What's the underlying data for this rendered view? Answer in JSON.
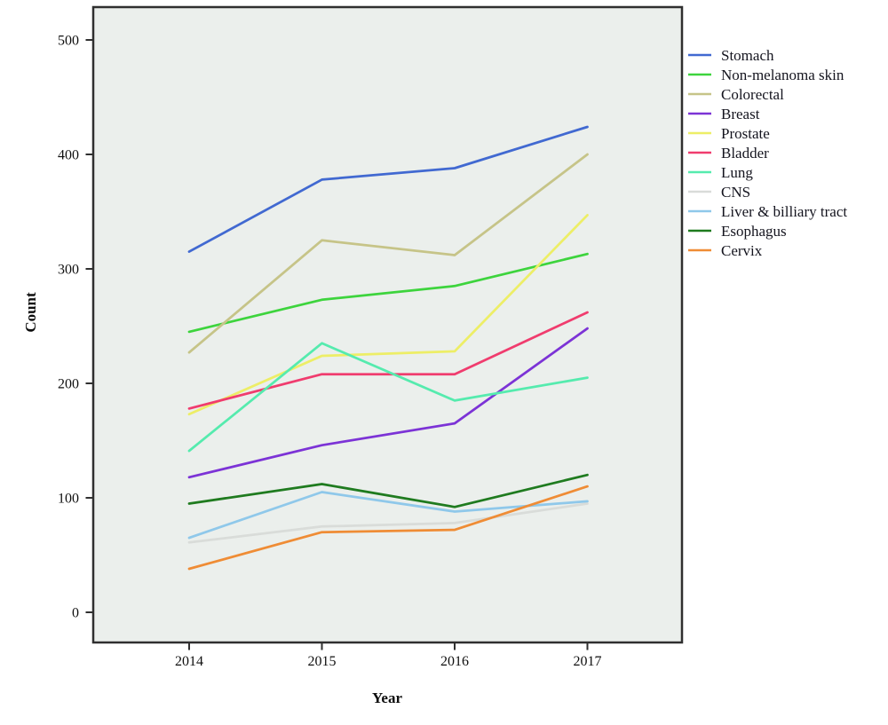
{
  "chart_data": {
    "type": "line",
    "title": "",
    "xlabel": "Year",
    "ylabel": "Count",
    "x": [
      2014,
      2015,
      2016,
      2017
    ],
    "ylim": [
      0,
      500
    ],
    "yticks": [
      0,
      100,
      200,
      300,
      400,
      500
    ],
    "grid": false,
    "legend_position": "right",
    "plot_background": "#EBEFEC",
    "frame_color": "#2f2f2f",
    "text_color": "#0f0f0f",
    "series": [
      {
        "name": "Stomach",
        "color": "#4169D1",
        "values": [
          315,
          378,
          388,
          424
        ]
      },
      {
        "name": "Non-melanoma skin",
        "color": "#3DD43D",
        "values": [
          245,
          273,
          285,
          313
        ]
      },
      {
        "name": "Colorectal",
        "color": "#C6C488",
        "values": [
          227,
          325,
          312,
          400
        ]
      },
      {
        "name": "Breast",
        "color": "#7C33D6",
        "values": [
          118,
          146,
          165,
          248
        ]
      },
      {
        "name": "Prostate",
        "color": "#EDEE66",
        "values": [
          173,
          224,
          228,
          347
        ]
      },
      {
        "name": "Bladder",
        "color": "#F03C6E",
        "values": [
          178,
          208,
          208,
          262
        ]
      },
      {
        "name": "Lung",
        "color": "#55EBAE",
        "values": [
          141,
          235,
          185,
          205
        ]
      },
      {
        "name": "CNS",
        "color": "#D9DCD9",
        "values": [
          61,
          75,
          78,
          95
        ]
      },
      {
        "name": "Liver & billiary tract",
        "color": "#8FC8EA",
        "values": [
          65,
          105,
          88,
          97
        ]
      },
      {
        "name": "Esophagus",
        "color": "#1F7B1F",
        "values": [
          95,
          112,
          92,
          120
        ]
      },
      {
        "name": "Cervix",
        "color": "#EF8C35",
        "values": [
          38,
          70,
          72,
          110
        ]
      }
    ]
  }
}
